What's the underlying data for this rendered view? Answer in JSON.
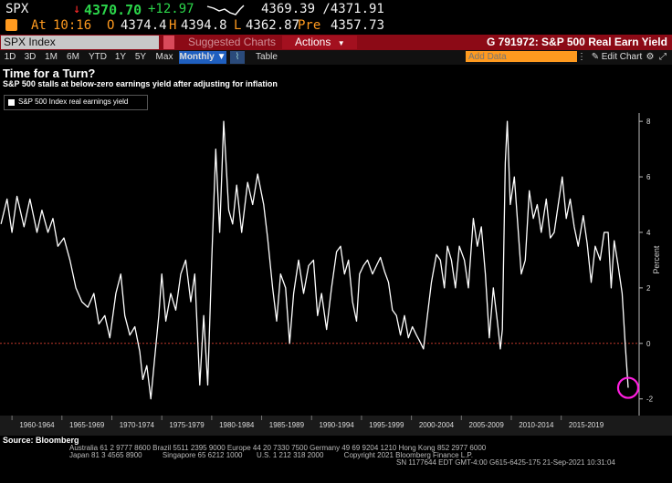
{
  "quote": {
    "ticker": "SPX",
    "arrow": "↓",
    "last": "4370.70",
    "change": "+12.97",
    "bid_ask": "4369.39 /4371.91",
    "at_label": "At",
    "time": "10:16",
    "open_label": "O",
    "open": "4374.4",
    "high_label": "H",
    "high": "4394.8",
    "low_label": "L",
    "low": "4362.87",
    "pre_label": "Pre",
    "pre": "4357.73"
  },
  "function_bar": {
    "security": "SPX Index",
    "suggested": "Suggested Charts",
    "actions": "Actions",
    "chart_id": "G 791972: S&P 500 Real Earn Yield"
  },
  "toolbar": {
    "periods": [
      "1D",
      "3D",
      "1M",
      "6M",
      "YTD",
      "1Y",
      "5Y",
      "Max"
    ],
    "frequency": "Monthly",
    "table_label": "Table",
    "add_data_placeholder": "Add Data",
    "edit_chart": "Edit Chart"
  },
  "chart_data": {
    "type": "line",
    "title": "Time for a Turn?",
    "subtitle": "S&P 500 stalls at below-zero earnings yield after adjusting for inflation",
    "legend": "S&P 500 Index real earnings yield",
    "ylabel": "Percent",
    "ylim": [
      -2.6,
      8.3
    ],
    "y_ticks": [
      -2,
      0,
      2,
      4,
      6,
      8
    ],
    "x_range": [
      1958.8,
      2022.8
    ],
    "x_period_labels": [
      "1960-1964",
      "1965-1969",
      "1970-1974",
      "1975-1979",
      "1980-1984",
      "1985-1989",
      "1990-1994",
      "1995-1999",
      "2000-2004",
      "2005-2009",
      "2010-2014",
      "2015-2019"
    ],
    "reference_line": 0,
    "series": [
      {
        "values": [
          [
            1958.9,
            4.3
          ],
          [
            1959.5,
            5.2
          ],
          [
            1960.0,
            4.0
          ],
          [
            1960.5,
            5.3
          ],
          [
            1961.2,
            4.2
          ],
          [
            1961.8,
            5.2
          ],
          [
            1962.5,
            4.0
          ],
          [
            1963.0,
            4.8
          ],
          [
            1963.6,
            4.0
          ],
          [
            1964.1,
            4.5
          ],
          [
            1964.6,
            3.5
          ],
          [
            1965.2,
            3.8
          ],
          [
            1965.8,
            3.0
          ],
          [
            1966.4,
            2.0
          ],
          [
            1967.0,
            1.5
          ],
          [
            1967.6,
            1.3
          ],
          [
            1968.2,
            1.8
          ],
          [
            1968.7,
            0.7
          ],
          [
            1969.3,
            1.0
          ],
          [
            1969.8,
            0.2
          ],
          [
            1970.4,
            1.8
          ],
          [
            1970.9,
            2.5
          ],
          [
            1971.3,
            1.0
          ],
          [
            1971.8,
            0.3
          ],
          [
            1972.3,
            0.6
          ],
          [
            1972.8,
            -0.3
          ],
          [
            1973.1,
            -1.3
          ],
          [
            1973.5,
            -0.8
          ],
          [
            1973.9,
            -2.0
          ],
          [
            1974.3,
            -0.5
          ],
          [
            1974.7,
            1.0
          ],
          [
            1975.0,
            2.5
          ],
          [
            1975.4,
            0.8
          ],
          [
            1975.9,
            1.8
          ],
          [
            1976.4,
            1.2
          ],
          [
            1976.9,
            2.5
          ],
          [
            1977.4,
            3.0
          ],
          [
            1977.9,
            1.5
          ],
          [
            1978.3,
            2.5
          ],
          [
            1978.8,
            -1.5
          ],
          [
            1979.2,
            1.0
          ],
          [
            1979.6,
            -1.5
          ],
          [
            1980.0,
            3.0
          ],
          [
            1980.4,
            7.0
          ],
          [
            1980.8,
            4.0
          ],
          [
            1981.2,
            8.0
          ],
          [
            1981.7,
            4.8
          ],
          [
            1982.1,
            4.3
          ],
          [
            1982.5,
            5.7
          ],
          [
            1983.0,
            4.0
          ],
          [
            1983.6,
            5.8
          ],
          [
            1984.1,
            5.0
          ],
          [
            1984.6,
            6.1
          ],
          [
            1985.2,
            5.0
          ],
          [
            1985.6,
            3.8
          ],
          [
            1986.1,
            2.0
          ],
          [
            1986.5,
            0.8
          ],
          [
            1986.9,
            2.5
          ],
          [
            1987.4,
            2.0
          ],
          [
            1987.8,
            0.0
          ],
          [
            1988.2,
            1.8
          ],
          [
            1988.7,
            3.0
          ],
          [
            1989.2,
            1.8
          ],
          [
            1989.7,
            2.8
          ],
          [
            1990.2,
            3.0
          ],
          [
            1990.6,
            1.0
          ],
          [
            1991.0,
            1.8
          ],
          [
            1991.5,
            0.5
          ],
          [
            1992.0,
            2.0
          ],
          [
            1992.5,
            3.3
          ],
          [
            1992.9,
            3.5
          ],
          [
            1993.3,
            2.5
          ],
          [
            1993.7,
            3.0
          ],
          [
            1994.1,
            1.5
          ],
          [
            1994.5,
            0.8
          ],
          [
            1994.8,
            2.5
          ],
          [
            1995.2,
            2.8
          ],
          [
            1995.6,
            3.0
          ],
          [
            1996.1,
            2.5
          ],
          [
            1996.5,
            2.8
          ],
          [
            1996.9,
            3.1
          ],
          [
            1997.3,
            2.6
          ],
          [
            1997.7,
            2.2
          ],
          [
            1998.1,
            1.2
          ],
          [
            1998.5,
            1.0
          ],
          [
            1998.9,
            0.3
          ],
          [
            1999.3,
            1.0
          ],
          [
            1999.7,
            0.2
          ],
          [
            2000.1,
            0.6
          ],
          [
            2000.5,
            0.3
          ],
          [
            2000.8,
            0.1
          ],
          [
            2001.2,
            -0.2
          ],
          [
            2001.6,
            1.0
          ],
          [
            2002.0,
            2.2
          ],
          [
            2002.5,
            3.2
          ],
          [
            2002.9,
            3.0
          ],
          [
            2003.3,
            2.0
          ],
          [
            2003.6,
            3.5
          ],
          [
            2004.0,
            3.0
          ],
          [
            2004.4,
            2.0
          ],
          [
            2004.8,
            3.5
          ],
          [
            2005.3,
            3.0
          ],
          [
            2005.7,
            2.0
          ],
          [
            2006.2,
            4.5
          ],
          [
            2006.6,
            3.5
          ],
          [
            2007.0,
            4.2
          ],
          [
            2007.4,
            2.5
          ],
          [
            2007.8,
            0.2
          ],
          [
            2008.2,
            2.0
          ],
          [
            2008.6,
            0.8
          ],
          [
            2008.9,
            -0.2
          ],
          [
            2009.1,
            0.5
          ],
          [
            2009.4,
            6.5
          ],
          [
            2009.6,
            8.0
          ],
          [
            2009.9,
            5.0
          ],
          [
            2010.3,
            6.0
          ],
          [
            2010.7,
            4.0
          ],
          [
            2011.0,
            2.5
          ],
          [
            2011.4,
            3.0
          ],
          [
            2011.8,
            5.5
          ],
          [
            2012.2,
            4.5
          ],
          [
            2012.6,
            5.0
          ],
          [
            2013.0,
            4.0
          ],
          [
            2013.5,
            5.2
          ],
          [
            2013.9,
            3.8
          ],
          [
            2014.3,
            4.0
          ],
          [
            2014.7,
            5.0
          ],
          [
            2015.1,
            6.0
          ],
          [
            2015.5,
            4.5
          ],
          [
            2015.9,
            5.2
          ],
          [
            2016.3,
            4.2
          ],
          [
            2016.7,
            3.5
          ],
          [
            2017.2,
            4.6
          ],
          [
            2017.6,
            3.6
          ],
          [
            2018.0,
            2.2
          ],
          [
            2018.4,
            3.5
          ],
          [
            2018.9,
            3.0
          ],
          [
            2019.3,
            4.0
          ],
          [
            2019.7,
            4.0
          ],
          [
            2020.0,
            2.0
          ],
          [
            2020.3,
            3.7
          ],
          [
            2020.7,
            2.8
          ],
          [
            2021.1,
            1.8
          ],
          [
            2021.4,
            0.0
          ],
          [
            2021.7,
            -1.6
          ]
        ]
      }
    ],
    "highlight_point": [
      2021.7,
      -1.6
    ]
  },
  "source": "Source: Bloomberg",
  "footer": {
    "line1": "Australia 61 2 9777 8600 Brazil 5511 2395 9000 Europe 44 20 7330 7500 Germany 49 69 9204 1210 Hong Kong 852 2977 6000",
    "line2": "Japan 81 3 4565 8900          Singapore 65 6212 1000       U.S. 1 212 318 2000          Copyright 2021 Bloomberg Finance L.P.",
    "line3": "SN 1177644 EDT  GMT-4:00 G615-6425-175 21-Sep-2021 10:31:04"
  },
  "colors": {
    "line": "#ffffff",
    "zero_line": "#c0392b",
    "highlight": "#ff1ee0",
    "function_bar": "#8c0a16",
    "accent_orange": "#ff9a1f"
  }
}
